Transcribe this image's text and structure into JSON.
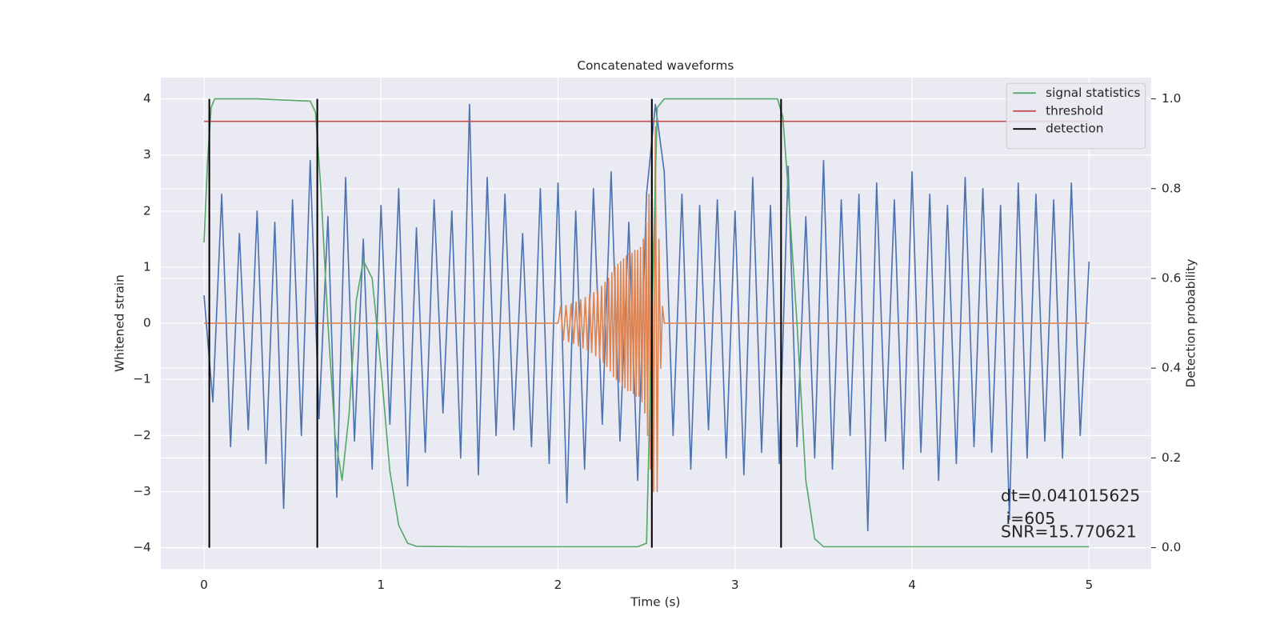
{
  "chart_data": {
    "type": "line",
    "title": "Concatenated waveforms",
    "xlabel": "Time (s)",
    "ylabel": "Whitened strain",
    "y2label": "Detection probability",
    "xlim": [
      -0.244,
      5.35
    ],
    "ylim": [
      -4.38,
      4.38
    ],
    "y2lim": [
      -0.0475,
      1.0475
    ],
    "xticks": [
      0,
      1,
      2,
      3,
      4,
      5
    ],
    "yticks": [
      {
        "value": -4,
        "label": "−4"
      },
      {
        "value": -3,
        "label": "−3"
      },
      {
        "value": -2,
        "label": "−2"
      },
      {
        "value": -1,
        "label": "−1"
      },
      0,
      1,
      2,
      3,
      4
    ],
    "y2ticks": [
      {
        "value": 0,
        "label": "0.0"
      },
      0.2,
      0.4,
      0.6,
      0.8,
      {
        "value": 1,
        "label": "1.0"
      }
    ],
    "grid": true,
    "legend": "upper right",
    "series": [
      {
        "color": "#4c72b0",
        "x": [
          0,
          0.05,
          0.1,
          0.15,
          0.2,
          0.25,
          0.3,
          0.35,
          0.4,
          0.45,
          0.5,
          0.55,
          0.6,
          0.65,
          0.7,
          0.75,
          0.8,
          0.85,
          0.9,
          0.95,
          1,
          1.05,
          1.1,
          1.15,
          1.2,
          1.25,
          1.3,
          1.35,
          1.4,
          1.45,
          1.5,
          1.55,
          1.6,
          1.65,
          1.7,
          1.75,
          1.8,
          1.85,
          1.9,
          1.95,
          2,
          2.05,
          2.1,
          2.15,
          2.2,
          2.25,
          2.3,
          2.35,
          2.4,
          2.45,
          2.5,
          2.55,
          2.6,
          2.65,
          2.7,
          2.75,
          2.8,
          2.85,
          2.9,
          2.95,
          3,
          3.05,
          3.1,
          3.15,
          3.2,
          3.25,
          3.3,
          3.35,
          3.4,
          3.45,
          3.5,
          3.55,
          3.6,
          3.65,
          3.7,
          3.75,
          3.8,
          3.85,
          3.9,
          3.95,
          4,
          4.05,
          4.1,
          4.15,
          4.2,
          4.25,
          4.3,
          4.35,
          4.4,
          4.45,
          4.5,
          4.55,
          4.6,
          4.65,
          4.7,
          4.75,
          4.8,
          4.85,
          4.9,
          4.95,
          5
        ],
        "values": [
          0.5,
          -1.4,
          2.3,
          -2.2,
          1.6,
          -1.9,
          2.0,
          -2.5,
          1.8,
          -3.3,
          2.2,
          -2.0,
          2.9,
          -1.7,
          1.9,
          -3.1,
          2.6,
          -2.1,
          1.5,
          -2.6,
          2.1,
          -1.8,
          2.4,
          -2.9,
          1.7,
          -2.3,
          2.2,
          -1.6,
          2.0,
          -2.4,
          3.9,
          -2.7,
          2.6,
          -2.0,
          2.3,
          -1.9,
          1.6,
          -2.2,
          2.4,
          -2.5,
          2.5,
          -3.2,
          2.0,
          -2.6,
          2.4,
          -1.8,
          2.7,
          -2.1,
          1.8,
          -2.8,
          2.3,
          3.9,
          2.7,
          -2.0,
          2.3,
          -2.6,
          2.1,
          -1.9,
          2.2,
          -2.4,
          2.0,
          -2.7,
          2.6,
          -2.3,
          2.1,
          -2.5,
          2.8,
          -2.2,
          1.9,
          -2.4,
          2.9,
          -2.6,
          2.2,
          -2.0,
          2.3,
          -3.7,
          2.5,
          -2.1,
          2.2,
          -2.6,
          2.7,
          -2.3,
          2.3,
          -2.8,
          2.1,
          -2.5,
          2.6,
          -2.2,
          2.4,
          -2.3,
          2.1,
          -3.5,
          2.5,
          -2.4,
          2.3,
          -2.1,
          2.2,
          -2.4,
          2.5,
          -2.0,
          1.1
        ]
      },
      {
        "color": "#dd8452",
        "x": [
          0,
          2,
          2.015,
          2.03,
          2.045,
          2.06,
          2.074,
          2.088,
          2.102,
          2.115,
          2.128,
          2.141,
          2.154,
          2.166,
          2.178,
          2.19,
          2.202,
          2.213,
          2.224,
          2.235,
          2.246,
          2.256,
          2.266,
          2.276,
          2.286,
          2.295,
          2.304,
          2.313,
          2.322,
          2.33,
          2.338,
          2.346,
          2.354,
          2.362,
          2.37,
          2.378,
          2.386,
          2.394,
          2.402,
          2.41,
          2.418,
          2.426,
          2.434,
          2.442,
          2.45,
          2.458,
          2.466,
          2.474,
          2.482,
          2.49,
          2.498,
          2.506,
          2.514,
          2.522,
          2.53,
          2.54,
          2.55,
          2.56,
          2.57,
          2.58,
          2.59,
          2.6,
          5
        ],
        "values": [
          0,
          0,
          0.3,
          -0.3,
          0.32,
          -0.33,
          0.35,
          -0.36,
          0.38,
          -0.4,
          0.42,
          -0.44,
          0.46,
          -0.48,
          0.5,
          -0.52,
          0.55,
          -0.58,
          0.6,
          -0.63,
          0.66,
          -0.7,
          0.73,
          -0.77,
          0.8,
          -0.85,
          0.9,
          -0.95,
          1.0,
          -1.0,
          1.05,
          -1.05,
          1.1,
          -1.1,
          1.15,
          -1.15,
          1.2,
          -1.2,
          1.25,
          -1.2,
          1.25,
          -1.25,
          1.3,
          -1.3,
          1.3,
          -1.3,
          1.35,
          -1.4,
          1.5,
          -1.6,
          1.8,
          -2.0,
          2.3,
          -2.6,
          3.3,
          -3.0,
          3.5,
          -3.0,
          1.5,
          -0.8,
          0.3,
          0,
          0
        ]
      },
      {
        "name": "signal statistics",
        "color": "#55a868",
        "axis": "y2",
        "x": [
          0,
          0.02,
          0.04,
          0.06,
          0.1,
          0.3,
          0.6,
          0.63,
          0.66,
          0.7,
          0.74,
          0.78,
          0.82,
          0.86,
          0.9,
          0.95,
          1.0,
          1.05,
          1.1,
          1.15,
          1.2,
          1.5,
          2.0,
          2.45,
          2.5,
          2.53,
          2.56,
          2.6,
          3.0,
          3.24,
          3.27,
          3.3,
          3.35,
          3.4,
          3.45,
          3.5,
          5
        ],
        "values": [
          0.68,
          0.86,
          0.98,
          1.0,
          1.0,
          1.0,
          0.995,
          0.97,
          0.8,
          0.5,
          0.25,
          0.15,
          0.3,
          0.55,
          0.64,
          0.6,
          0.4,
          0.17,
          0.05,
          0.01,
          0.003,
          0.002,
          0.002,
          0.002,
          0.01,
          0.5,
          0.98,
          1.0,
          1.0,
          1.0,
          0.96,
          0.8,
          0.5,
          0.15,
          0.02,
          0.002,
          0.002
        ]
      },
      {
        "name": "threshold",
        "color": "#c44e52",
        "axis": "y2",
        "x": [
          0,
          5
        ],
        "values": [
          0.95,
          0.95
        ]
      }
    ],
    "detection": {
      "name": "detection",
      "color": "#000000",
      "x": [
        0.03,
        0.64,
        2.53,
        3.26
      ],
      "ymin": 0,
      "ymax": 1
    },
    "annotation": [
      "dt=0.041015625",
      " i=605",
      "SNR=15.770621"
    ]
  }
}
